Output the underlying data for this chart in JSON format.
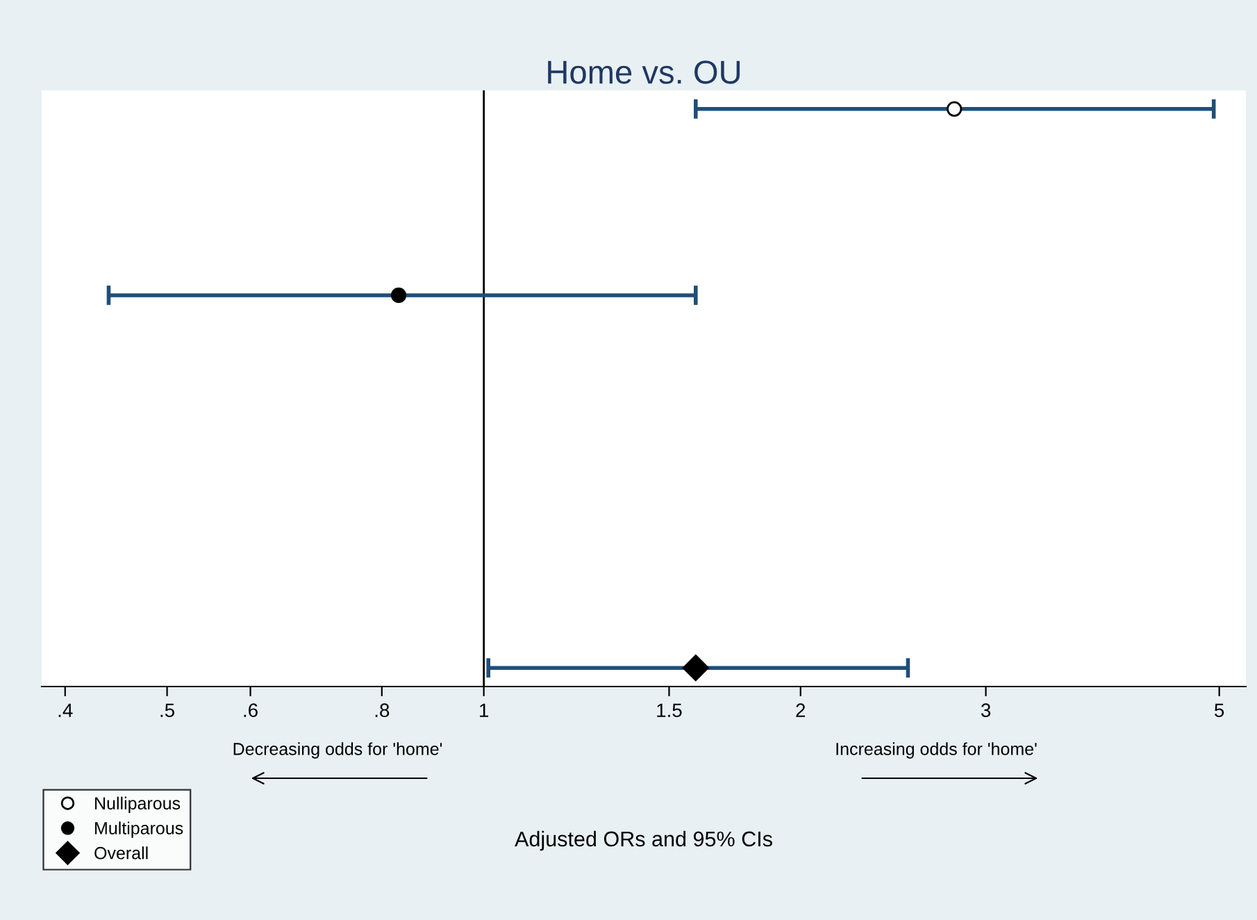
{
  "chart_data": {
    "type": "scatter",
    "title": "Home vs. OU",
    "orientation": "horizontal",
    "categories": [
      null,
      null,
      null,
      null
    ],
    "log": "x",
    "xlim": [
      0.38,
      5.3
    ],
    "xticks": [
      {
        "value": 0.4,
        "label": ".4"
      },
      {
        "value": 0.5,
        "label": ".5"
      },
      {
        "value": 0.6,
        "label": ".6"
      },
      {
        "value": 0.8,
        "label": ".8"
      },
      1,
      1.5,
      2,
      3,
      5
    ],
    "tick_labels": "x",
    "grid": false,
    "legend": "bottom left",
    "series": [
      {
        "name": "Nulliparous",
        "marker": "circle",
        "color": "#ffffff",
        "values": [
          2.8,
          null,
          null,
          null
        ],
        "errors": [
          [
            1.59,
            4.94
          ],
          null,
          null,
          null
        ]
      },
      {
        "name": "Multiparous",
        "marker": "circle",
        "color": "#000000",
        "values": [
          null,
          0.83,
          null,
          null
        ],
        "errors": [
          null,
          [
            0.44,
            1.59
          ],
          null,
          null
        ]
      },
      {
        "name": "Overall",
        "marker": "diamond",
        "color": "#000000",
        "values": [
          null,
          null,
          null,
          1.59
        ],
        "errors": [
          null,
          null,
          null,
          [
            1.01,
            2.53
          ]
        ]
      }
    ],
    "ref_lines": [
      {
        "axis": "x",
        "value": 1,
        "color": "#000000"
      }
    ],
    "annotations": [
      "Decreasing odds for 'home'",
      "Increasing odds for 'home'",
      "Adjusted ORs and 95% CIs"
    ]
  }
}
